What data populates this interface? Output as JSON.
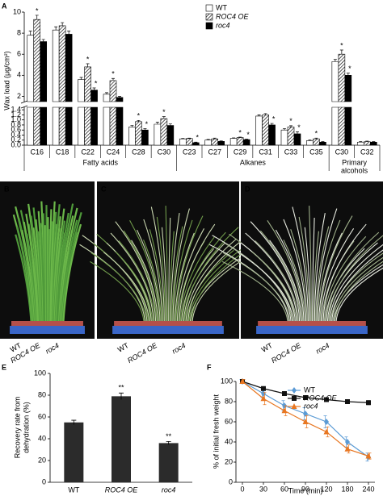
{
  "chart_data": [
    {
      "type": "grouped-bar-broken-axis",
      "panel_label": "A",
      "y_label": "Wax load (μg/cm²)",
      "categories": [
        "C16",
        "C18",
        "C22",
        "C24",
        "C28",
        "C30",
        "C23",
        "C27",
        "C29",
        "C31",
        "C33",
        "C35",
        "C30",
        "C32"
      ],
      "category_groups": [
        0,
        0,
        0,
        0,
        0,
        0,
        1,
        1,
        1,
        1,
        1,
        1,
        2,
        2
      ],
      "group_labels": [
        [
          "Fatty acids"
        ],
        [
          "Alkanes"
        ],
        [
          "Primary",
          "alcohols"
        ]
      ],
      "ylim_lower": [
        0,
        1.5
      ],
      "yticks_lower": [
        {
          "value": 0,
          "label": "0.0"
        },
        {
          "value": 0.2,
          "label": "0.2"
        },
        {
          "value": 0.4,
          "label": "0.4"
        },
        {
          "value": 0.6,
          "label": "0.6"
        },
        {
          "value": 0.8,
          "label": "0.8"
        },
        {
          "value": 1,
          "label": "1.0"
        },
        {
          "value": 1.2,
          "label": "1.2"
        },
        {
          "value": 1.4,
          "label": "1.4"
        }
      ],
      "ylim_upper": [
        1.5,
        10
      ],
      "yticks_upper": [
        2,
        4,
        6,
        8,
        10
      ],
      "legend": "upper right",
      "series": [
        {
          "name": "WT",
          "color": "#ffffff",
          "hatch": false,
          "italic": false,
          "values": [
            7.8,
            8.3,
            3.6,
            2.2,
            0.72,
            0.83,
            0.25,
            0.2,
            0.27,
            1.15,
            0.6,
            0.18,
            5.3,
            0.12
          ],
          "errors": [
            0.4,
            0.3,
            0.2,
            0.15,
            0.06,
            0.08,
            0.02,
            0.03,
            0.02,
            0.05,
            0.06,
            0.03,
            0.2,
            0.02
          ],
          "significance": [
            null,
            null,
            null,
            null,
            null,
            null,
            null,
            null,
            null,
            null,
            null,
            null,
            null,
            null
          ]
        },
        {
          "name": "ROC4 OE",
          "color": "#ffffff",
          "hatch": true,
          "italic": true,
          "values": [
            9.3,
            8.7,
            4.8,
            3.5,
            0.93,
            1.05,
            0.26,
            0.25,
            0.3,
            1.2,
            0.72,
            0.25,
            6.0,
            0.14
          ],
          "errors": [
            0.4,
            0.3,
            0.3,
            0.2,
            0.05,
            0.08,
            0.02,
            0.03,
            0.02,
            0.05,
            0.05,
            0.03,
            0.4,
            0.02
          ],
          "significance": [
            "*",
            null,
            "*",
            "*",
            "*",
            "*",
            null,
            null,
            "*",
            null,
            "*",
            "*",
            "*",
            null
          ]
        },
        {
          "name": "roc4",
          "color": "#000000",
          "hatch": false,
          "italic": true,
          "values": [
            7.2,
            7.9,
            2.6,
            1.9,
            0.6,
            0.78,
            0.1,
            0.15,
            0.22,
            0.8,
            0.45,
            0.12,
            4.0,
            0.12
          ],
          "errors": [
            0.2,
            0.3,
            0.2,
            0.1,
            0.05,
            0.06,
            0.02,
            0.02,
            0.02,
            0.06,
            0.08,
            0.02,
            0.2,
            0.02
          ],
          "significance": [
            null,
            null,
            "*",
            null,
            "*",
            null,
            "*",
            null,
            "*",
            "*",
            "*",
            null,
            "*",
            null
          ]
        }
      ]
    },
    {
      "type": "bar",
      "panel_label": "E",
      "y_label": [
        "Recovery  rate from",
        "dehydration (%)"
      ],
      "categories": [
        "WT",
        "ROC4 OE",
        "roc4"
      ],
      "italic_categories": [
        false,
        true,
        true
      ],
      "values": [
        55,
        79,
        36
      ],
      "errors": [
        2,
        3,
        1.5
      ],
      "significance": [
        null,
        "**",
        "**"
      ],
      "color": "#2b2b2b",
      "ylim": [
        0,
        100
      ],
      "yticks": [
        0,
        20,
        40,
        60,
        80,
        100
      ]
    },
    {
      "type": "line",
      "panel_label": "F",
      "y_label": "% of initial fresh weight",
      "x_label": "Time  (min)",
      "categories": [
        "0",
        "30",
        "60",
        "90",
        "120",
        "180",
        "240"
      ],
      "ylim": [
        0,
        100
      ],
      "yticks": [
        0,
        20,
        40,
        60,
        80,
        100
      ],
      "legend": "upper right",
      "series": [
        {
          "name": "WT",
          "color": "#5b9bd5",
          "marker": "diamond",
          "italic": false,
          "values": [
            100,
            88,
            76,
            68,
            60,
            40,
            25
          ],
          "errors": [
            2,
            4,
            5,
            6,
            6,
            5,
            4
          ]
        },
        {
          "name": "ROC4 OE",
          "color": "#111111",
          "marker": "square",
          "italic": true,
          "values": [
            100,
            93,
            88,
            84,
            82,
            80,
            79
          ],
          "errors": [
            1,
            1,
            2,
            2,
            2,
            2,
            2
          ]
        },
        {
          "name": "roc4",
          "color": "#e87722",
          "marker": "triangle",
          "italic": true,
          "values": [
            100,
            83,
            71,
            60,
            50,
            33,
            26
          ],
          "errors": [
            2,
            6,
            5,
            6,
            5,
            4,
            3
          ]
        }
      ]
    }
  ],
  "photo_panels": [
    {
      "label": "B",
      "genotypes": [
        "WT",
        "ROC4 OE",
        "roc4"
      ]
    },
    {
      "label": "C",
      "genotypes": [
        "WT",
        "ROC4 OE",
        "roc4"
      ]
    },
    {
      "label": "D",
      "genotypes": [
        "WT",
        "ROC4 OE",
        "roc4"
      ]
    }
  ]
}
